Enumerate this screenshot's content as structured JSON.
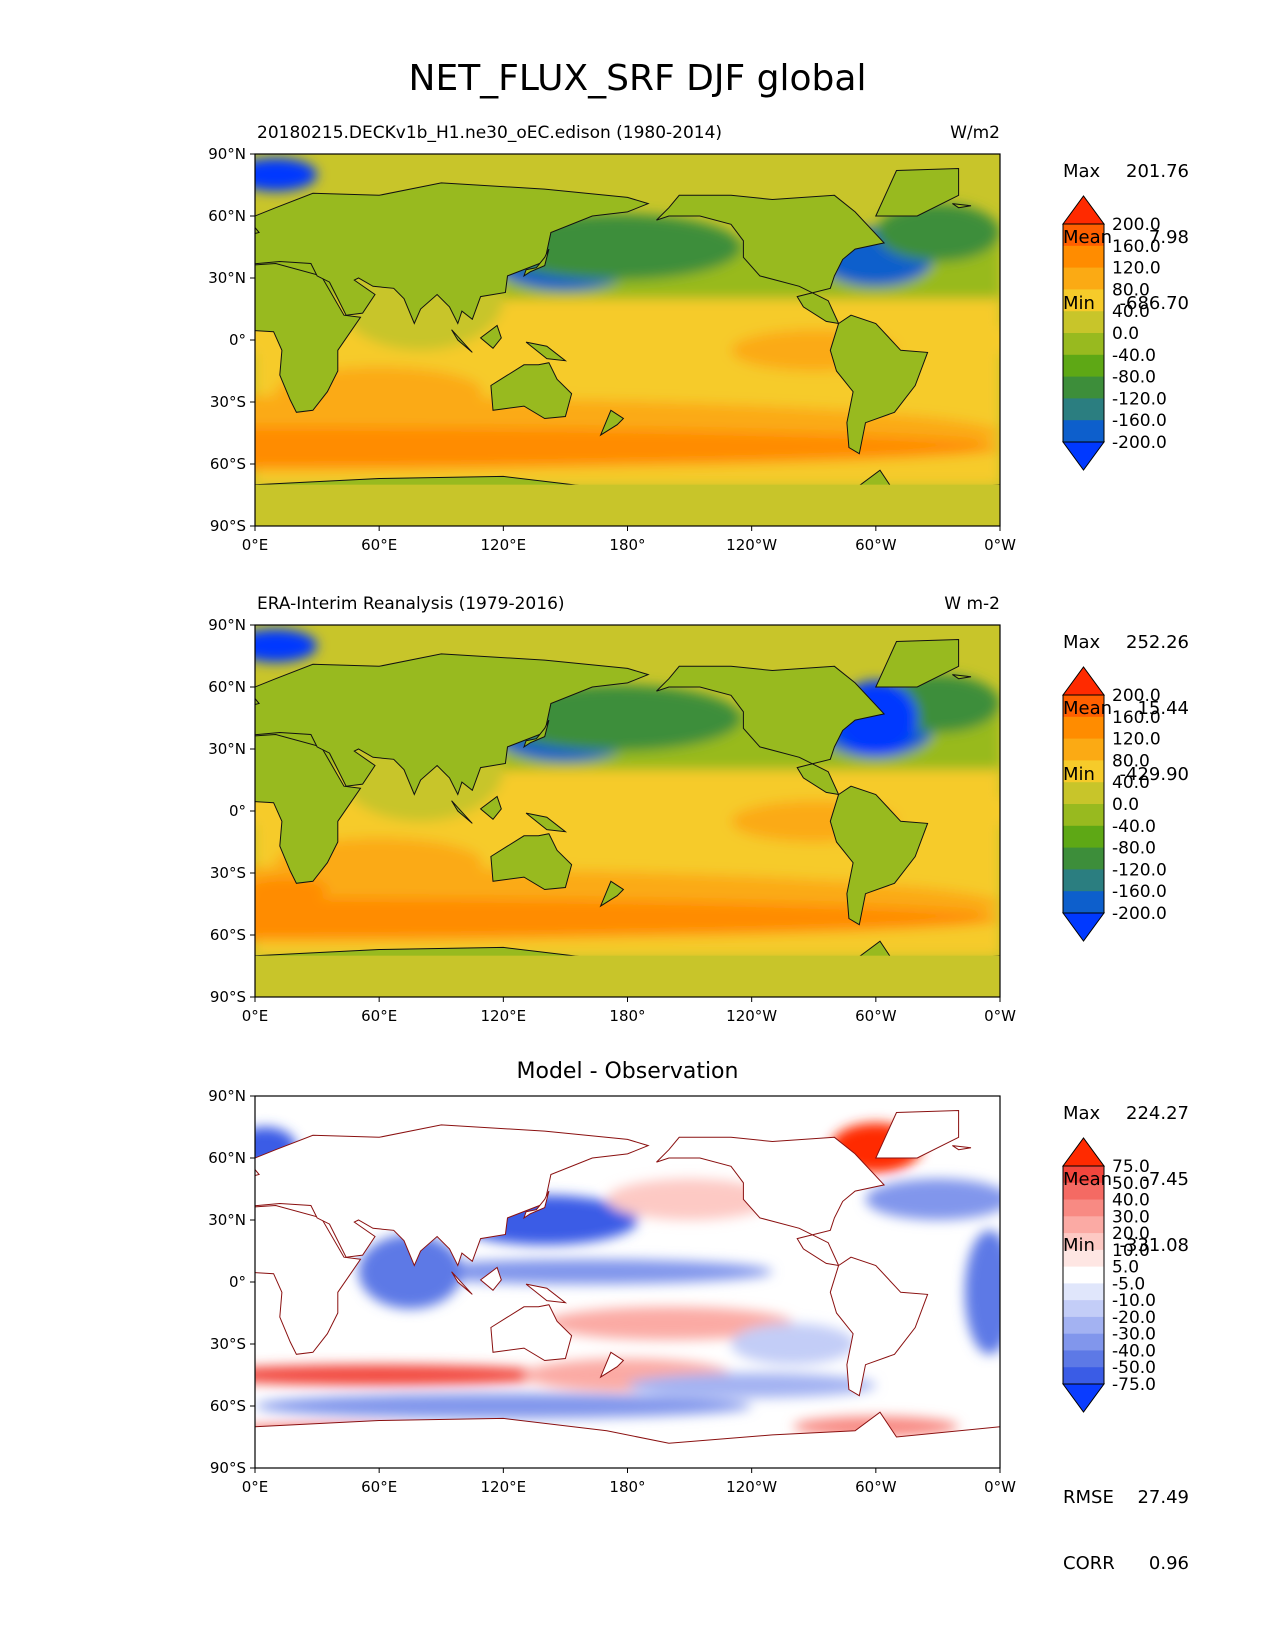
{
  "figure_title": "NET_FLUX_SRF DJF global",
  "chart_data": [
    {
      "type": "heatmap",
      "title_left": "20180215.DECKv1b_H1.ne30_oEC.edison (1980-2014)",
      "title_right": "W/m2",
      "x_ticks": [
        "0°E",
        "60°E",
        "120°E",
        "180°",
        "120°W",
        "60°W",
        "0°W"
      ],
      "y_ticks": [
        "90°N",
        "60°N",
        "30°N",
        "0°",
        "30°S",
        "60°S",
        "90°S"
      ],
      "xlim": [
        0,
        360
      ],
      "ylim": [
        -90,
        90
      ],
      "stats": {
        "labels": [
          "Max",
          "Mean",
          "Min"
        ],
        "values": [
          "201.76",
          "7.98",
          "-686.70"
        ]
      },
      "colorbar": {
        "labels": [
          "200.0",
          "160.0",
          "120.0",
          "80.0",
          "40.0",
          "0.0",
          "-40.0",
          "-80.0",
          "-120.0",
          "-160.0",
          "-200.0"
        ],
        "colors": [
          "#ff2a00",
          "#ff6000",
          "#ff8c00",
          "#fbaa14",
          "#f6cb2a",
          "#c8c52a",
          "#98ba1f",
          "#5ea815",
          "#3d8e3a",
          "#2b7e80",
          "#0d5fcc",
          "#0039ff"
        ]
      }
    },
    {
      "type": "heatmap",
      "title_left": "ERA-Interim Reanalysis (1979-2016)",
      "title_right": "W m-2",
      "x_ticks": [
        "0°E",
        "60°E",
        "120°E",
        "180°",
        "120°W",
        "60°W",
        "0°W"
      ],
      "y_ticks": [
        "90°N",
        "60°N",
        "30°N",
        "0°",
        "30°S",
        "60°S",
        "90°S"
      ],
      "xlim": [
        0,
        360
      ],
      "ylim": [
        -90,
        90
      ],
      "stats": {
        "labels": [
          "Max",
          "Mean",
          "Min"
        ],
        "values": [
          "252.26",
          "15.44",
          "-429.90"
        ]
      },
      "colorbar": {
        "labels": [
          "200.0",
          "160.0",
          "120.0",
          "80.0",
          "40.0",
          "0.0",
          "-40.0",
          "-80.0",
          "-120.0",
          "-160.0",
          "-200.0"
        ],
        "colors": [
          "#ff2a00",
          "#ff6000",
          "#ff8c00",
          "#fbaa14",
          "#f6cb2a",
          "#c8c52a",
          "#98ba1f",
          "#5ea815",
          "#3d8e3a",
          "#2b7e80",
          "#0d5fcc",
          "#0039ff"
        ]
      }
    },
    {
      "type": "heatmap",
      "title_center": "Model - Observation",
      "x_ticks": [
        "0°E",
        "60°E",
        "120°E",
        "180°",
        "120°W",
        "60°W",
        "0°W"
      ],
      "y_ticks": [
        "90°N",
        "60°N",
        "30°N",
        "0°",
        "30°S",
        "60°S",
        "90°S"
      ],
      "xlim": [
        0,
        360
      ],
      "ylim": [
        -90,
        90
      ],
      "stats": {
        "labels": [
          "Max",
          "Mean",
          "Min"
        ],
        "values": [
          "224.27",
          "-7.45",
          "-331.08"
        ]
      },
      "metrics": {
        "labels": [
          "RMSE",
          "CORR"
        ],
        "values": [
          "27.49",
          "0.96"
        ]
      },
      "colorbar": {
        "labels": [
          "75.0",
          "50.0",
          "40.0",
          "30.0",
          "20.0",
          "10.0",
          "5.0",
          "-5.0",
          "-10.0",
          "-20.0",
          "-30.0",
          "-40.0",
          "-50.0",
          "-75.0"
        ],
        "colors": [
          "#ff2a00",
          "#f2463d",
          "#f46a63",
          "#f88a83",
          "#fbaaa4",
          "#fdc9c4",
          "#fee6e3",
          "#ffffff",
          "#e0e6fb",
          "#c3cdf7",
          "#a3b2f2",
          "#8196ec",
          "#5d79e6",
          "#3a5ce6",
          "#0a3cff"
        ]
      }
    }
  ]
}
